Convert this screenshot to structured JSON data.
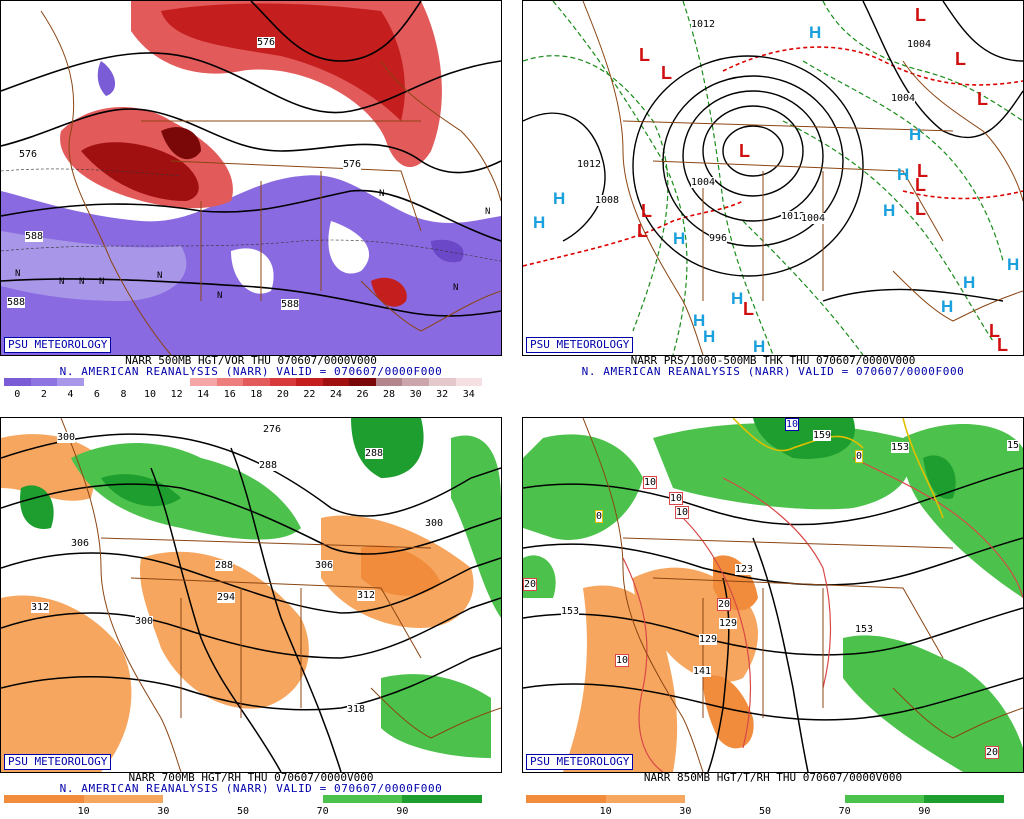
{
  "panels": [
    {
      "badge": "PSU METEOROLOGY",
      "caption_line1": "NARR 500MB HGT/VOR THU 070607/0000V000",
      "caption_line2": "N. AMERICAN REANALYSIS (NARR) VALID = 070607/0000F000",
      "scale": {
        "colors": [
          "#7a5cd6",
          "#8e74e0",
          "#a896e8",
          "#ffffff",
          "#ffffff",
          "#ffffff",
          "#ffffff",
          "#f4a6a6",
          "#ee7e7e",
          "#e35a5a",
          "#d63a3a",
          "#c41e1e",
          "#a01010",
          "#7a0808",
          "#b2848c",
          "#cca4ac",
          "#e4c8cc",
          "#f4e0e2"
        ],
        "labels": [
          "0",
          "2",
          "4",
          "6",
          "8",
          "10",
          "12",
          "14",
          "16",
          "18",
          "20",
          "22",
          "24",
          "26",
          "28",
          "30",
          "32",
          "34"
        ]
      },
      "contour_labels": [
        "576",
        "588",
        "588",
        "576",
        "576",
        "588"
      ],
      "symbols": [
        "N",
        "N",
        "N",
        "N",
        "N",
        "N",
        "N",
        "N",
        "N"
      ]
    },
    {
      "badge": "PSU METEOROLOGY",
      "caption_line1": "NARR PRS/1000-500MB THK THU 070607/0000V000",
      "caption_line2": "N. AMERICAN REANALYSIS (NARR) VALID = 070607/0000F000",
      "contour_labels": [
        "1012",
        "1004",
        "1012",
        "1004",
        "1008",
        "996",
        "1012",
        "1004",
        "1004"
      ],
      "highs": [
        "H",
        "H",
        "H",
        "H",
        "H",
        "H",
        "H",
        "H",
        "H",
        "H",
        "H",
        "H",
        "H",
        "H"
      ],
      "lows": [
        "L",
        "L",
        "L",
        "L",
        "L",
        "L",
        "L",
        "L",
        "L",
        "L",
        "L",
        "L",
        "L",
        "L"
      ]
    },
    {
      "badge": "PSU METEOROLOGY",
      "caption_line1": "NARR 700MB HGT/RH THU 070607/0000V000",
      "caption_line2": "N. AMERICAN REANALYSIS (NARR) VALID = 070607/0000F000",
      "scale": {
        "colors": [
          "#f08c3c",
          "#f6a65e",
          "#ffffff",
          "#ffffff",
          "#4cc24c",
          "#1e9e2e"
        ],
        "labels": [
          "10",
          "30",
          "50",
          "70",
          "90"
        ]
      },
      "contour_labels": [
        "300",
        "276",
        "288",
        "288",
        "300",
        "306",
        "288",
        "294",
        "306",
        "312",
        "312",
        "300",
        "318"
      ]
    },
    {
      "badge": "PSU METEOROLOGY",
      "caption_line1": "NARR 850MB HGT/T/RH THU 070607/0000V000",
      "caption_line2": "",
      "scale": {
        "colors": [
          "#f08c3c",
          "#f6a65e",
          "#ffffff",
          "#ffffff",
          "#4cc24c",
          "#1e9e2e"
        ],
        "labels": [
          "10",
          "30",
          "50",
          "70",
          "90"
        ]
      },
      "contour_labels": [
        "153",
        "153",
        "123",
        "129",
        "129",
        "141",
        "153",
        "159",
        "10",
        "15"
      ],
      "temp_labels": [
        "10",
        "10",
        "10",
        "20",
        "10",
        "20",
        "0",
        "0",
        "20"
      ]
    }
  ]
}
